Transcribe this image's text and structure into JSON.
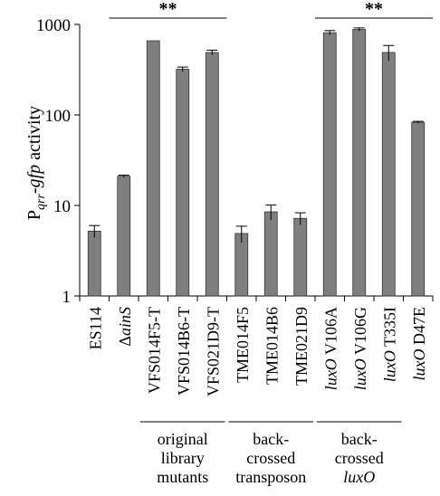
{
  "chart_data": {
    "type": "bar",
    "ylabel_main": "P",
    "ylabel_sub": "qrr",
    "ylabel_gene": "-gfp",
    "ylabel_rest": " activity",
    "yscale": "log",
    "ylim": [
      1,
      1000
    ],
    "yticks": [
      "1",
      "10",
      "100",
      "1000"
    ],
    "bar_color": "#7f7f7f",
    "categories": [
      [
        {
          "t": "ES114",
          "i": false
        }
      ],
      [
        {
          "t": "Δ",
          "i": false
        },
        {
          "t": "ainS",
          "i": true
        }
      ],
      [
        {
          "t": "VFS014F5-T",
          "i": false
        }
      ],
      [
        {
          "t": "VFS014B6-T",
          "i": false
        }
      ],
      [
        {
          "t": "VFS021D9-T",
          "i": false
        }
      ],
      [
        {
          "t": "TME014F5",
          "i": false
        }
      ],
      [
        {
          "t": "TME014B6",
          "i": false
        }
      ],
      [
        {
          "t": "TME021D9",
          "i": false
        }
      ],
      [
        {
          "t": "luxO",
          "i": true
        },
        {
          "t": " V106A",
          "i": false
        }
      ],
      [
        {
          "t": "luxO",
          "i": true
        },
        {
          "t": " V106G",
          "i": false
        }
      ],
      [
        {
          "t": "luxO",
          "i": true
        },
        {
          "t": " T335I",
          "i": false
        }
      ],
      [
        {
          "t": "luxO",
          "i": true
        },
        {
          "t": " D47E",
          "i": false
        }
      ]
    ],
    "values": [
      5.2,
      21,
      660,
      320,
      490,
      4.9,
      8.5,
      7.2,
      810,
      880,
      490,
      83
    ],
    "errors": [
      0.8,
      0.6,
      0,
      18,
      30,
      1.0,
      1.6,
      1.1,
      45,
      35,
      95,
      2
    ],
    "significance": [
      {
        "label": "**",
        "from": 1,
        "to": 4
      },
      {
        "label": "**",
        "from": 8,
        "to": 11
      }
    ],
    "groups": [
      {
        "from": 2,
        "to": 4,
        "lines": [
          [
            {
              "t": "original",
              "i": false
            }
          ],
          [
            {
              "t": "library",
              "i": false
            }
          ],
          [
            {
              "t": "mutants",
              "i": false
            }
          ]
        ]
      },
      {
        "from": 5,
        "to": 7,
        "lines": [
          [
            {
              "t": "back-",
              "i": false
            }
          ],
          [
            {
              "t": "crossed",
              "i": false
            }
          ],
          [
            {
              "t": "transposon",
              "i": false
            }
          ]
        ]
      },
      {
        "from": 8,
        "to": 10,
        "lines": [
          [
            {
              "t": "back-",
              "i": false
            }
          ],
          [
            {
              "t": "crossed",
              "i": false
            }
          ],
          [
            {
              "t": "luxO",
              "i": true
            }
          ]
        ]
      }
    ]
  }
}
